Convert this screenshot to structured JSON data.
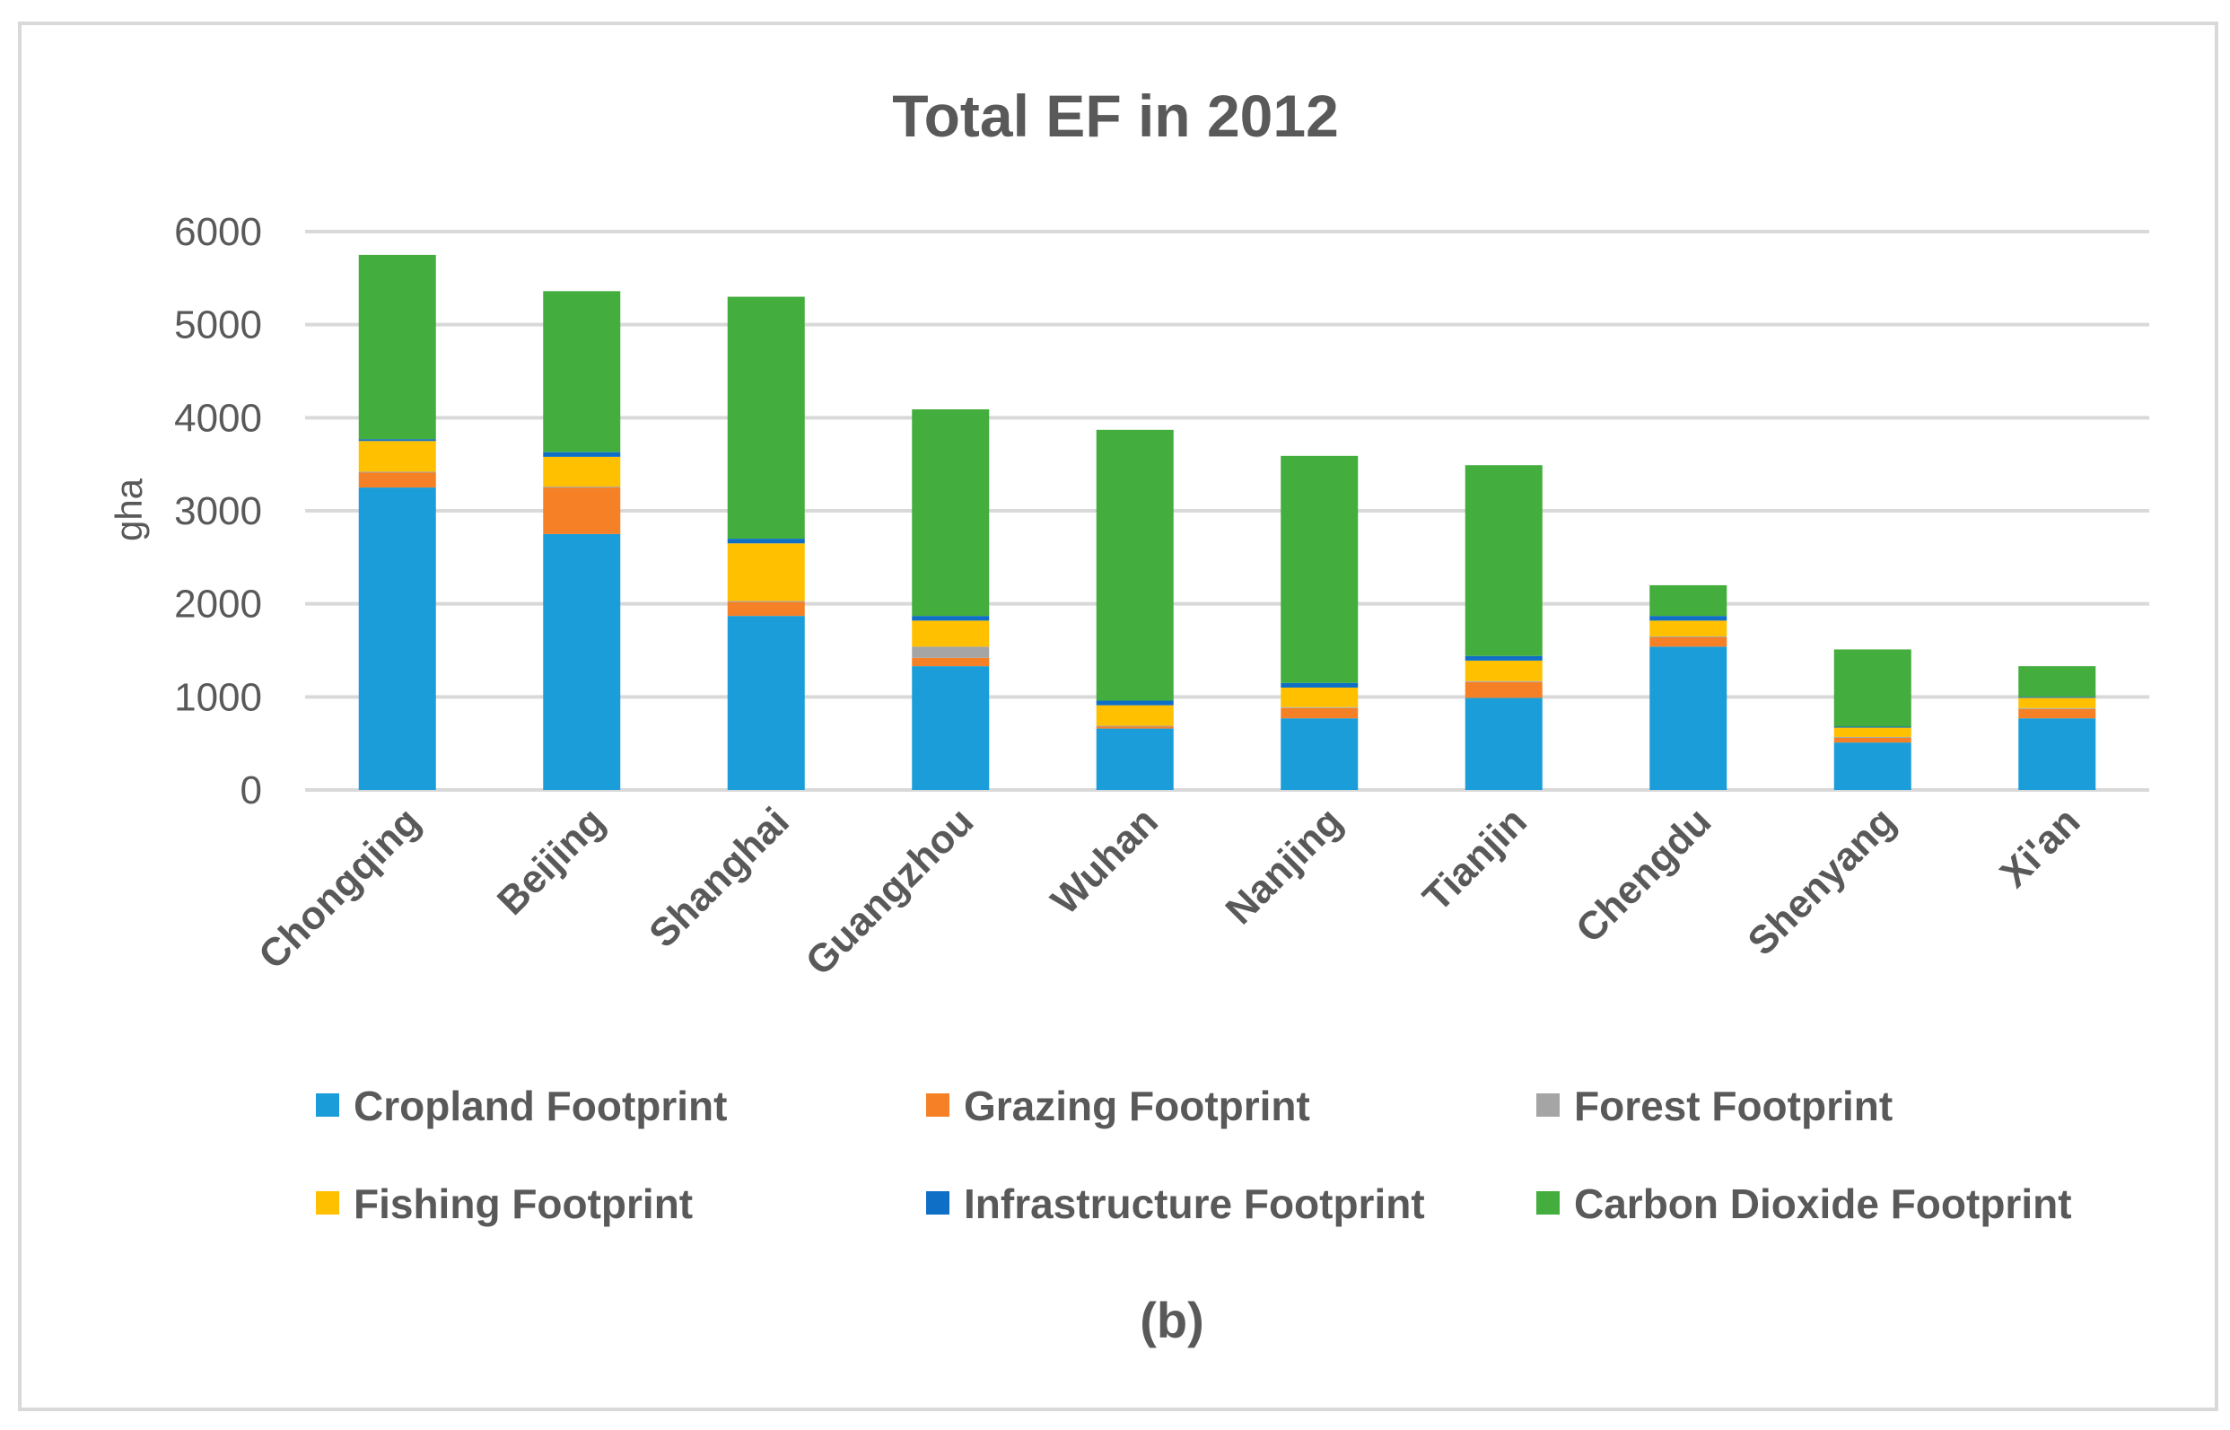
{
  "chart_data": {
    "type": "bar",
    "stacked": true,
    "title": "Total EF in 2012",
    "xlabel": "",
    "ylabel": "gha",
    "ylim": [
      0,
      6000
    ],
    "yticks": [
      0,
      1000,
      2000,
      3000,
      4000,
      5000,
      6000
    ],
    "grid": true,
    "legend_position": "bottom",
    "caption": "(b)",
    "categories": [
      "Chongqing",
      "Beijing",
      "Shanghai",
      "Guangzhou",
      "Wuhan",
      "Nanjing",
      "Tianjin",
      "Chengdu",
      "Shenyang",
      "Xi'an"
    ],
    "series": [
      {
        "name": "Cropland Footprint",
        "color": "#1b9dd9",
        "values": [
          3250,
          2750,
          1870,
          1330,
          660,
          770,
          990,
          1540,
          510,
          770
        ]
      },
      {
        "name": "Grazing Footprint",
        "color": "#f58025",
        "values": [
          160,
          500,
          150,
          90,
          20,
          110,
          170,
          100,
          50,
          100
        ]
      },
      {
        "name": "Forest Footprint",
        "color": "#a5a5a5",
        "values": [
          10,
          10,
          10,
          120,
          10,
          10,
          10,
          10,
          10,
          10
        ]
      },
      {
        "name": "Fishing Footprint",
        "color": "#ffc000",
        "values": [
          330,
          320,
          620,
          280,
          220,
          210,
          220,
          170,
          100,
          110
        ]
      },
      {
        "name": "Infrastructure Footprint",
        "color": "#0f6fc6",
        "values": [
          20,
          50,
          50,
          50,
          50,
          50,
          50,
          50,
          10,
          10
        ]
      },
      {
        "name": "Carbon Dioxide Footprint",
        "color": "#43ad3d",
        "values": [
          1980,
          1730,
          2600,
          2220,
          2910,
          2440,
          2050,
          330,
          830,
          330
        ]
      }
    ]
  }
}
